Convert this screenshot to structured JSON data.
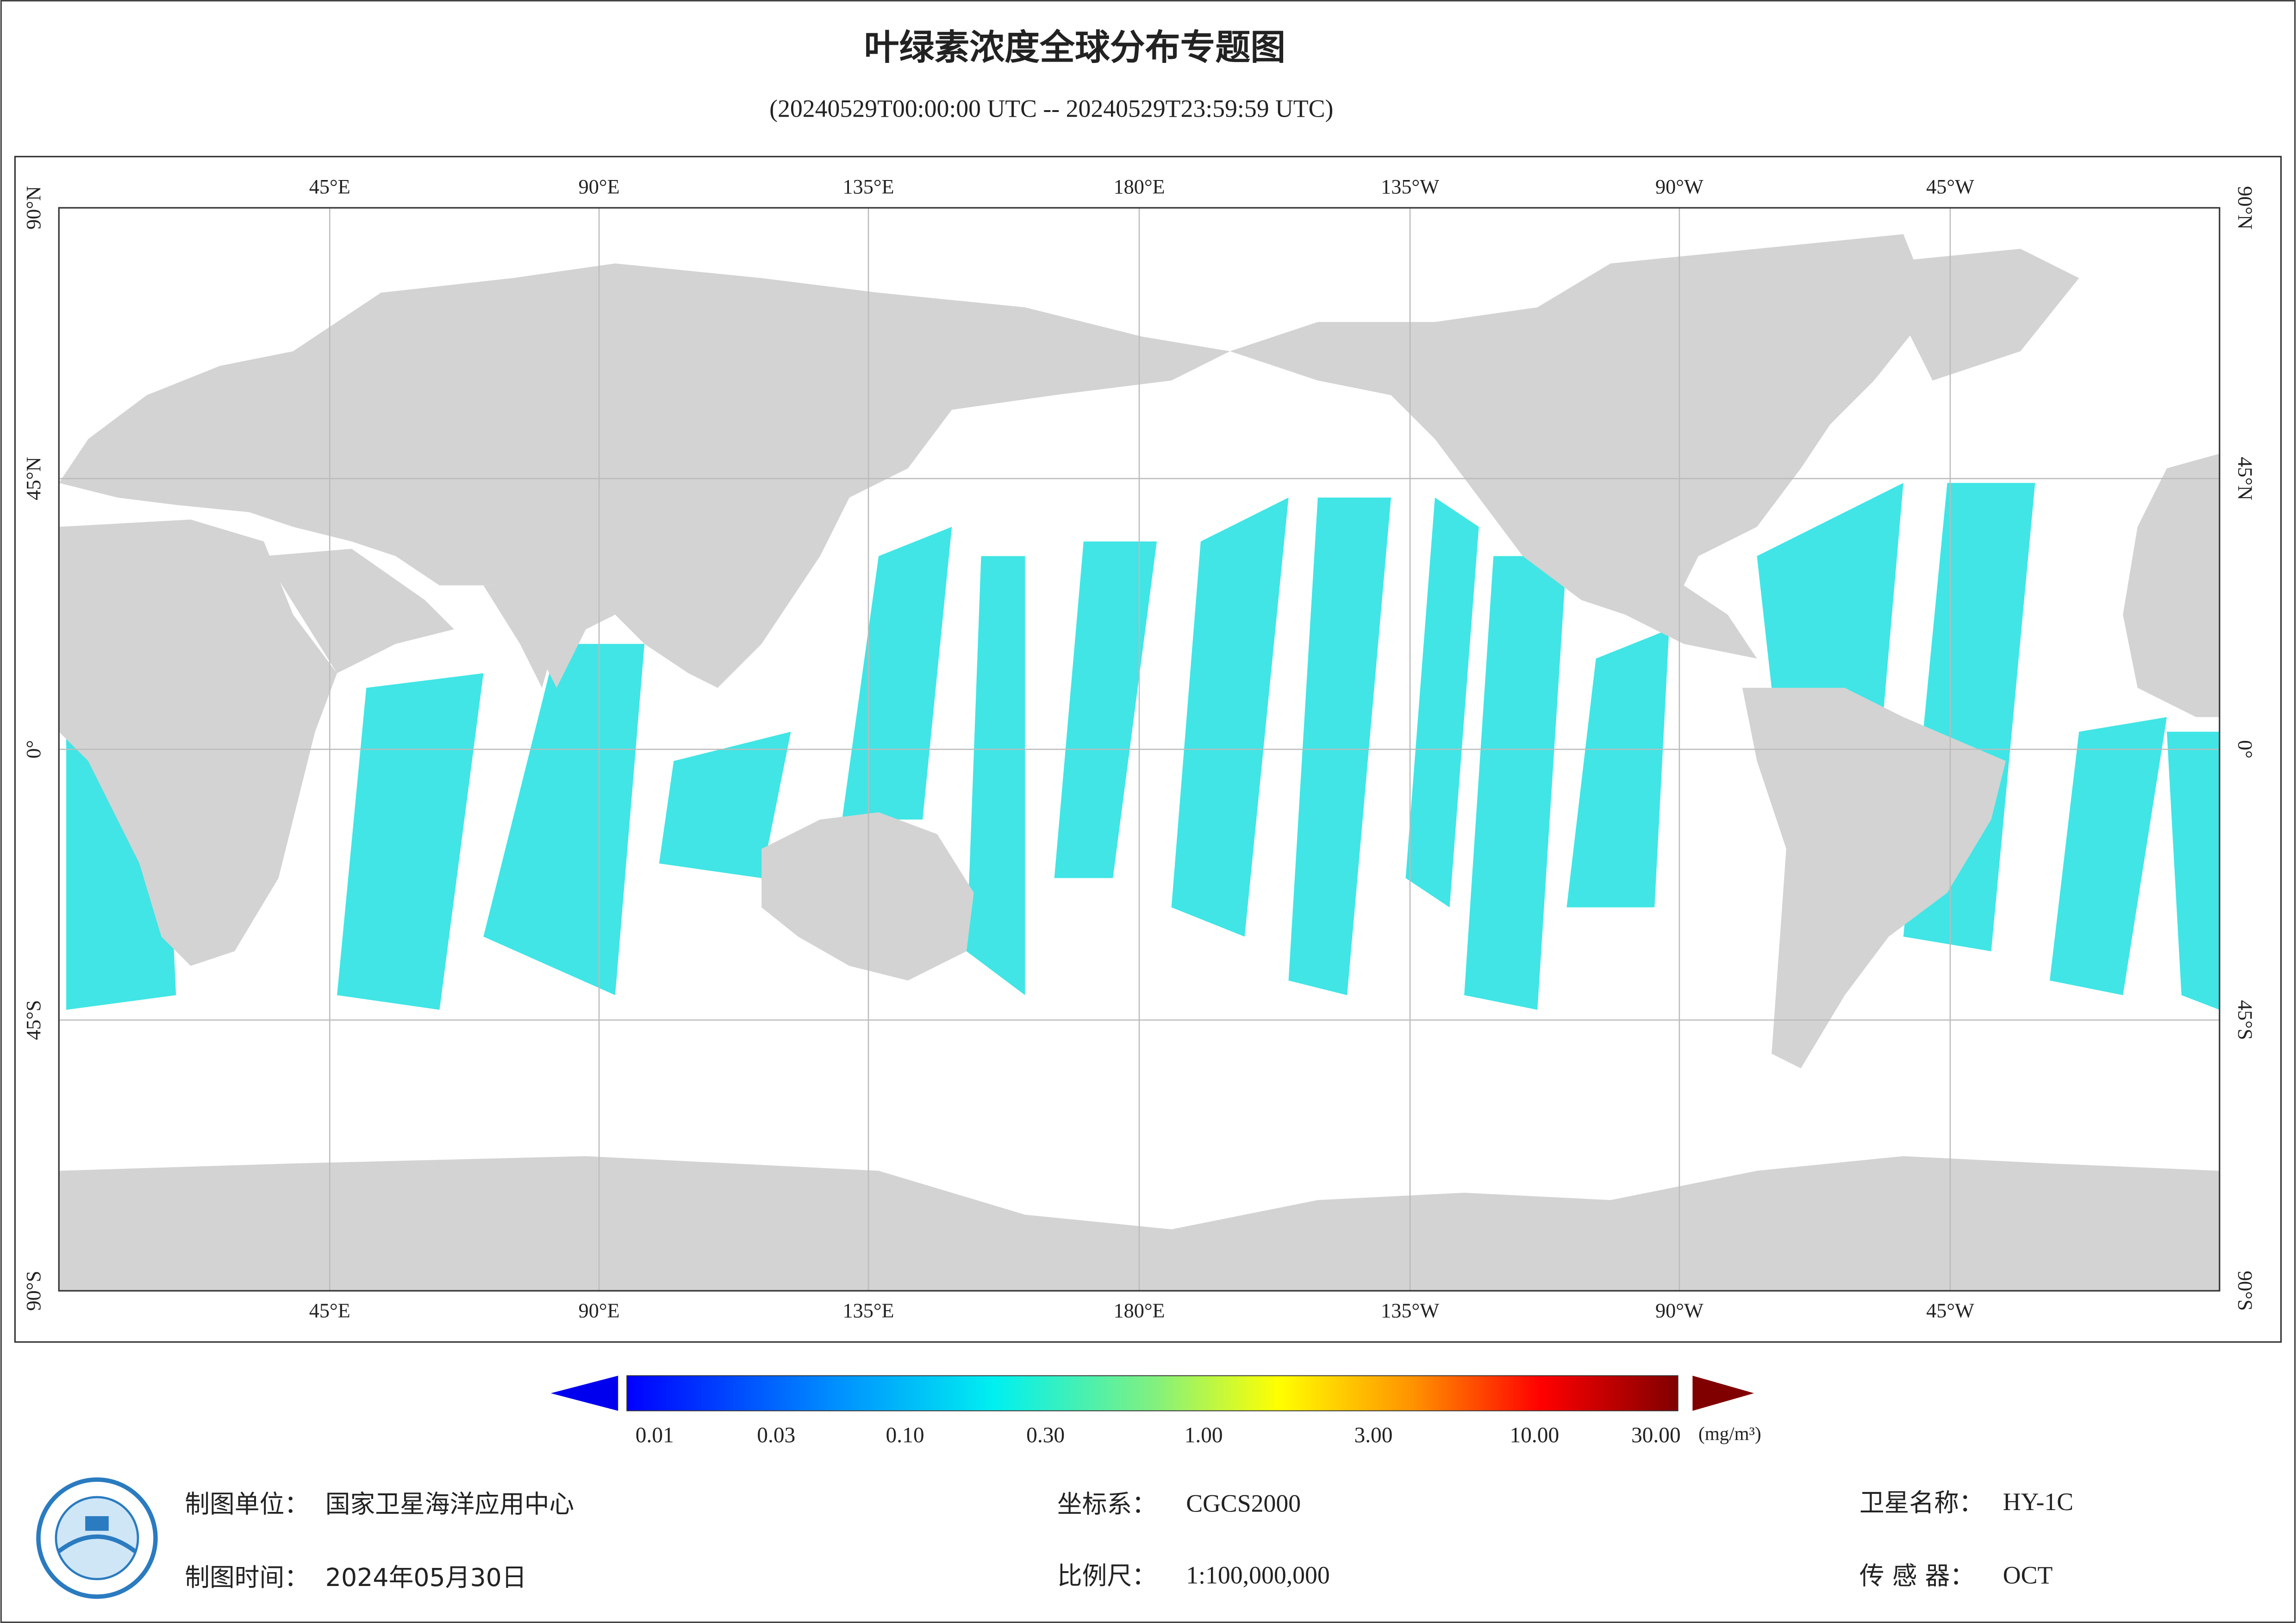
{
  "title": "叶绿素浓度全球分布专题图",
  "subtitle": "(20240529T00:00:00 UTC -- 20240529T23:59:59 UTC)",
  "graticule": {
    "longitudes": [
      "45°E",
      "90°E",
      "135°E",
      "180°E",
      "135°W",
      "90°W",
      "45°W"
    ],
    "latitudes": [
      "90°N",
      "45°N",
      "0°",
      "45°S",
      "90°S"
    ]
  },
  "colorbar": {
    "labels": [
      "0.01",
      "0.03",
      "0.10",
      "0.30",
      "1.00",
      "3.00",
      "10.00",
      "30.00"
    ],
    "unit": "(mg/m³)"
  },
  "footer": {
    "agency_label": "制图单位：",
    "agency": "国家卫星海洋应用中心",
    "date_label": "制图时间：",
    "date": "2024年05月30日",
    "crs_label": "坐标系：",
    "crs": "CGCS2000",
    "scale_label": "比例尺：",
    "scale": "1:100,000,000",
    "satellite_label": "卫星名称：",
    "satellite": "HY-1C",
    "sensor_label": "传 感 器：",
    "sensor": "OCT"
  }
}
